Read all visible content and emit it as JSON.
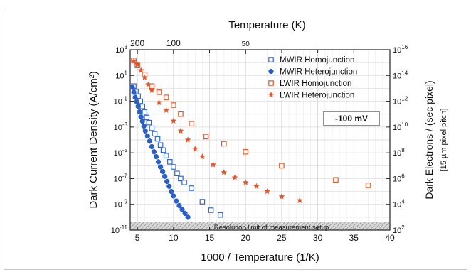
{
  "chart_data": {
    "type": "scatter",
    "xlabel": "1000 / Temperature (1/K)",
    "ylabel_left": "Dark Current Density (A/cm²)",
    "ylabel_right_line1": "Dark Electrons / (sec pixel)",
    "ylabel_right_line2": "[15 µm pixel pitch]",
    "xlabel_top": "Temperature (K)",
    "xlim": [
      4,
      40
    ],
    "ylim_left": [
      1e-11,
      1000.0
    ],
    "ylim_right": [
      100.0,
      1e+16
    ],
    "y_scale": "log",
    "x_ticks": [
      {
        "v": 5,
        "label": "5"
      },
      {
        "v": 10,
        "label": "10"
      },
      {
        "v": 15,
        "label": "15"
      },
      {
        "v": 20,
        "label": "20"
      },
      {
        "v": 25,
        "label": "25"
      },
      {
        "v": 30,
        "label": "30"
      },
      {
        "v": 35,
        "label": "35"
      },
      {
        "v": 40,
        "label": "40"
      }
    ],
    "y_ticks_left": [
      {
        "v": 1e-11,
        "base": "10",
        "exp": "-11"
      },
      {
        "v": 1e-09,
        "base": "10",
        "exp": "-9"
      },
      {
        "v": 1e-07,
        "base": "10",
        "exp": "-7"
      },
      {
        "v": 1e-05,
        "base": "10",
        "exp": "-5"
      },
      {
        "v": 0.001,
        "base": "10",
        "exp": "-3"
      },
      {
        "v": 0.1,
        "base": "10",
        "exp": "-1"
      },
      {
        "v": 10.0,
        "base": "10",
        "exp": "1"
      },
      {
        "v": 1000.0,
        "base": "10",
        "exp": "3"
      }
    ],
    "y_ticks_right": [
      {
        "v": 100.0,
        "base": "10",
        "exp": "2"
      },
      {
        "v": 10000.0,
        "base": "10",
        "exp": "4"
      },
      {
        "v": 1000000.0,
        "base": "10",
        "exp": "6"
      },
      {
        "v": 100000000.0,
        "base": "10",
        "exp": "8"
      },
      {
        "v": 10000000000.0,
        "base": "10",
        "exp": "10"
      },
      {
        "v": 1000000000000.0,
        "base": "10",
        "exp": "12"
      },
      {
        "v": 100000000000000.0,
        "base": "10",
        "exp": "14"
      },
      {
        "v": 1e+16,
        "base": "10",
        "exp": "16"
      }
    ],
    "top_ticks": [
      {
        "T": 200,
        "label": "200"
      },
      {
        "T": 100,
        "label": "100"
      },
      {
        "T": 50,
        "label": "50"
      }
    ],
    "annotation_bias": "-100 mV",
    "resolution_label": "Resolution limit of measurement setup",
    "resolution_limit_y": 4e-11,
    "grid": true,
    "legend_position": "top-right",
    "series": [
      {
        "name": "MWIR Homojunction",
        "marker": "open-square",
        "color": "#3366cc",
        "points": [
          [
            4.5,
            1.5
          ],
          [
            4.8,
            0.55
          ],
          [
            5.1,
            0.25
          ],
          [
            5.4,
            0.1
          ],
          [
            5.7,
            0.04
          ],
          [
            6.0,
            0.015
          ],
          [
            6.3,
            0.0055
          ],
          [
            6.6,
            0.0022
          ],
          [
            7.0,
            0.0008
          ],
          [
            7.4,
            0.0003
          ],
          [
            7.8,
            0.00012
          ],
          [
            8.2,
            4e-05
          ],
          [
            8.6,
            1.6e-05
          ],
          [
            9.0,
            6e-06
          ],
          [
            9.5,
            2e-06
          ],
          [
            10.0,
            8e-07
          ],
          [
            10.5,
            2.5e-07
          ],
          [
            11.0,
            1e-07
          ],
          [
            11.5,
            5e-08
          ],
          [
            12.5,
            1.8e-08
          ],
          [
            14.0,
            1.6e-09
          ],
          [
            15.2,
            3.5e-10
          ],
          [
            16.5,
            1.5e-10
          ]
        ]
      },
      {
        "name": "MWIR Heterojunction",
        "marker": "filled-circle",
        "color": "#2b5fc4",
        "points": [
          [
            4.3,
            1.2
          ],
          [
            4.5,
            0.5
          ],
          [
            4.7,
            0.2
          ],
          [
            4.9,
            0.09
          ],
          [
            5.1,
            0.04
          ],
          [
            5.3,
            0.015
          ],
          [
            5.5,
            0.006
          ],
          [
            5.7,
            0.0028
          ],
          [
            5.9,
            0.0012
          ],
          [
            6.1,
            0.0005
          ],
          [
            6.4,
            0.0002
          ],
          [
            6.7,
            8e-05
          ],
          [
            7.0,
            3e-05
          ],
          [
            7.3,
            1.2e-05
          ],
          [
            7.6,
            5e-06
          ],
          [
            7.9,
            2e-06
          ],
          [
            8.2,
            8e-07
          ],
          [
            8.5,
            3.5e-07
          ],
          [
            8.8,
            1.5e-07
          ],
          [
            9.1,
            6e-08
          ],
          [
            9.4,
            2.5e-08
          ],
          [
            9.7,
            1e-08
          ],
          [
            10.0,
            4.5e-09
          ],
          [
            10.4,
            1.8e-09
          ],
          [
            10.8,
            8e-10
          ],
          [
            11.2,
            4e-10
          ],
          [
            11.6,
            2e-10
          ],
          [
            12.0,
            1e-10
          ]
        ]
      },
      {
        "name": "LWIR Homojunction",
        "marker": "open-square",
        "color": "#e2572c",
        "points": [
          [
            4.5,
            150
          ],
          [
            5.0,
            60
          ],
          [
            6.0,
            12
          ],
          [
            7.0,
            1.5
          ],
          [
            8.0,
            0.5
          ],
          [
            9.0,
            0.2
          ],
          [
            10.0,
            0.05
          ],
          [
            11.0,
            0.01
          ],
          [
            12.5,
            0.0018
          ],
          [
            14.5,
            0.00018
          ],
          [
            17.0,
            5e-05
          ],
          [
            20.0,
            1.2e-05
          ],
          [
            25.0,
            1e-06
          ],
          [
            32.5,
            8e-08
          ],
          [
            37.0,
            3e-08
          ]
        ]
      },
      {
        "name": "LWIR Heterojunction",
        "marker": "star",
        "color": "#e2572c",
        "points": [
          [
            4.5,
            130
          ],
          [
            5.0,
            70
          ],
          [
            5.5,
            25
          ],
          [
            6.0,
            7
          ],
          [
            6.5,
            2
          ],
          [
            7.0,
            0.7
          ],
          [
            8.0,
            0.08
          ],
          [
            9.0,
            0.02
          ],
          [
            10.0,
            0.003
          ],
          [
            11.0,
            0.0005
          ],
          [
            12.0,
            0.0001
          ],
          [
            13.0,
            2e-05
          ],
          [
            14.0,
            5e-06
          ],
          [
            15.5,
            1.2e-06
          ],
          [
            17.0,
            3e-07
          ],
          [
            18.5,
            1.2e-07
          ],
          [
            20.0,
            5e-08
          ],
          [
            21.5,
            2.5e-08
          ],
          [
            23.0,
            1e-08
          ],
          [
            25.0,
            4e-09
          ],
          [
            27.5,
            2e-09
          ]
        ]
      }
    ]
  }
}
